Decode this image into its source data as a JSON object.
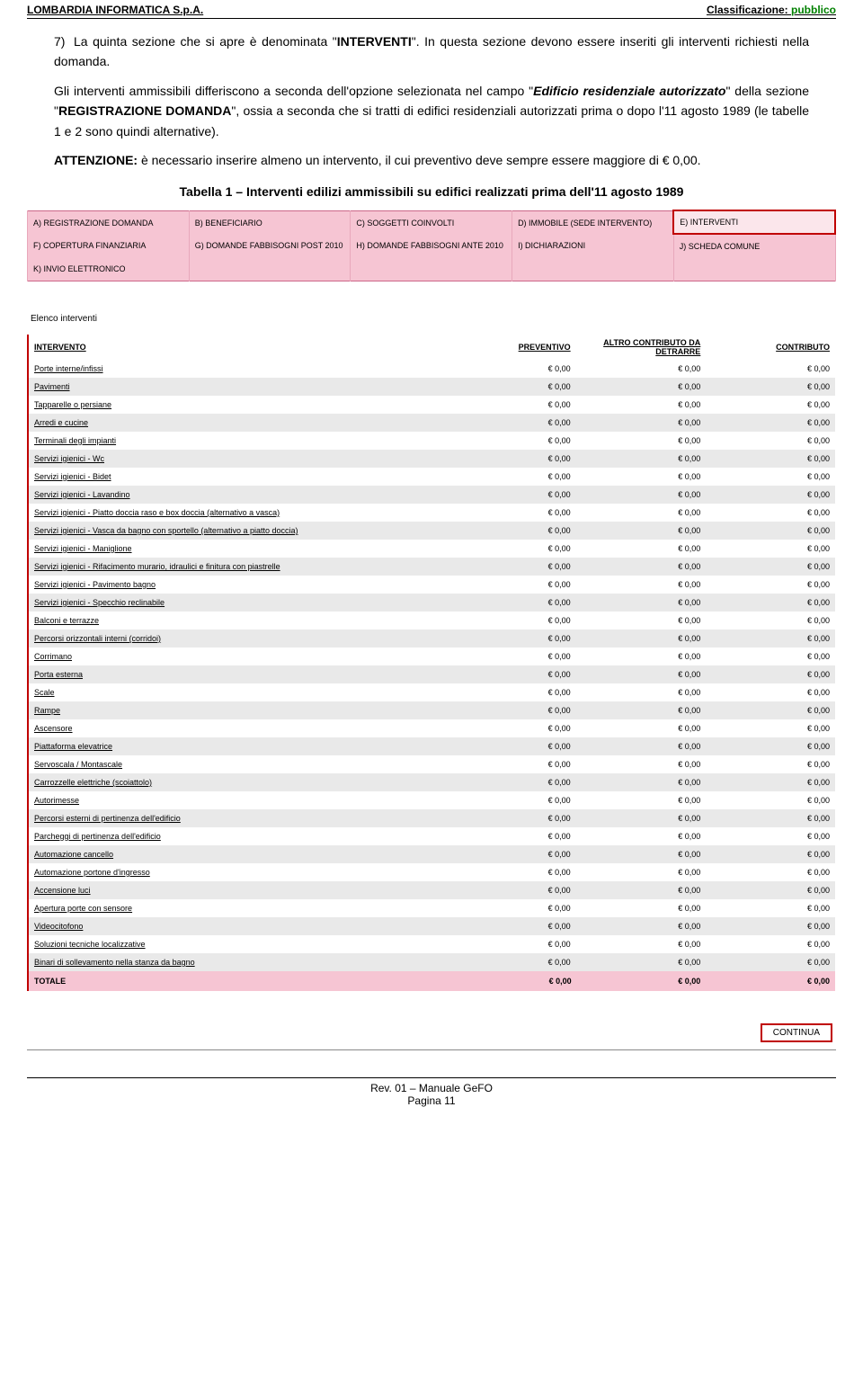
{
  "header": {
    "left": "LOMBARDIA INFORMATICA S.p.A.",
    "right_label": "Classificazione: ",
    "right_value": "pubblico"
  },
  "section7": {
    "num": "7)",
    "p1_a": "La quinta sezione che si apre è denominata \"",
    "p1_b": "INTERVENTI",
    "p1_c": "\". In questa sezione devono essere inseriti gli interventi richiesti nella domanda.",
    "p2_a": "Gli interventi ammissibili differiscono a seconda dell'opzione selezionata nel campo \"",
    "p2_b": "Edificio residenziale autorizzato",
    "p2_c": "\" della sezione \"",
    "p2_d": "REGISTRAZIONE DOMANDA",
    "p2_e": "\", ossia a seconda che si tratti di edifici residenziali autorizzati prima o dopo l'11 agosto 1989 (le tabelle 1 e 2 sono quindi alternative).",
    "p3_a": "ATTENZIONE:",
    "p3_b": " è necessario inserire almeno un intervento, il cui preventivo deve sempre essere maggiore di € 0,00."
  },
  "caption": "Tabella 1 – Interventi edilizi ammissibili su edifici realizzati prima dell'11 agosto 1989",
  "tabs": [
    "A) REGISTRAZIONE DOMANDA",
    "B) BENEFICIARIO",
    "C) SOGGETTI COINVOLTI",
    "D) IMMOBILE (SEDE INTERVENTO)",
    "E) INTERVENTI",
    "F) COPERTURA FINANZIARIA",
    "G) DOMANDE FABBISOGNI POST 2010",
    "H) DOMANDE FABBISOGNI ANTE 2010",
    "I) DICHIARAZIONI",
    "J) SCHEDA COMUNE",
    "K) INVIO ELETTRONICO"
  ],
  "elenco_label": "Elenco interventi",
  "cols": {
    "c1": "INTERVENTO",
    "c2": "PREVENTIVO",
    "c3": "ALTRO CONTRIBUTO DA\nDETRARRE",
    "c4": "CONTRIBUTO"
  },
  "zero": "€ 0,00",
  "rows": [
    "Porte interne/infissi",
    "Pavimenti",
    "Tapparelle o persiane",
    "Arredi e cucine",
    "Terminali degli impianti",
    "Servizi igienici - Wc",
    "Servizi igienici - Bidet",
    "Servizi igienici - Lavandino",
    "Servizi igienici - Piatto doccia raso e box doccia (alternativo a vasca)",
    "Servizi igienici - Vasca da bagno con sportello (alternativo a piatto doccia)",
    "Servizi igienici - Maniglione",
    "Servizi igienici - Rifacimento murario, idraulici e finitura con piastrelle",
    "Servizi igienici - Pavimento bagno",
    "Servizi igienici - Specchio reclinabile",
    "Balconi e terrazze",
    "Percorsi orizzontali interni (corridoi)",
    "Corrimano",
    "Porta esterna",
    "Scale",
    "Rampe",
    "Ascensore",
    "Piattaforma elevatrice",
    "Servoscala / Montascale",
    "Carrozzelle elettriche (scoiattolo)",
    "Autorimesse",
    "Percorsi esterni di pertinenza dell'edificio",
    "Parcheggi di pertinenza dell'edificio",
    "Automazione cancello",
    "Automazione portone d'ingresso",
    "Accensione luci",
    "Apertura porte con sensore",
    "Videocitofono",
    "Soluzioni tecniche localizzative",
    "Binari di sollevamento nella stanza da bagno"
  ],
  "totale_label": "TOTALE",
  "continua": "CONTINUA",
  "footer": {
    "l1": "Rev. 01 – Manuale GeFO",
    "l2": "Pagina 11"
  }
}
